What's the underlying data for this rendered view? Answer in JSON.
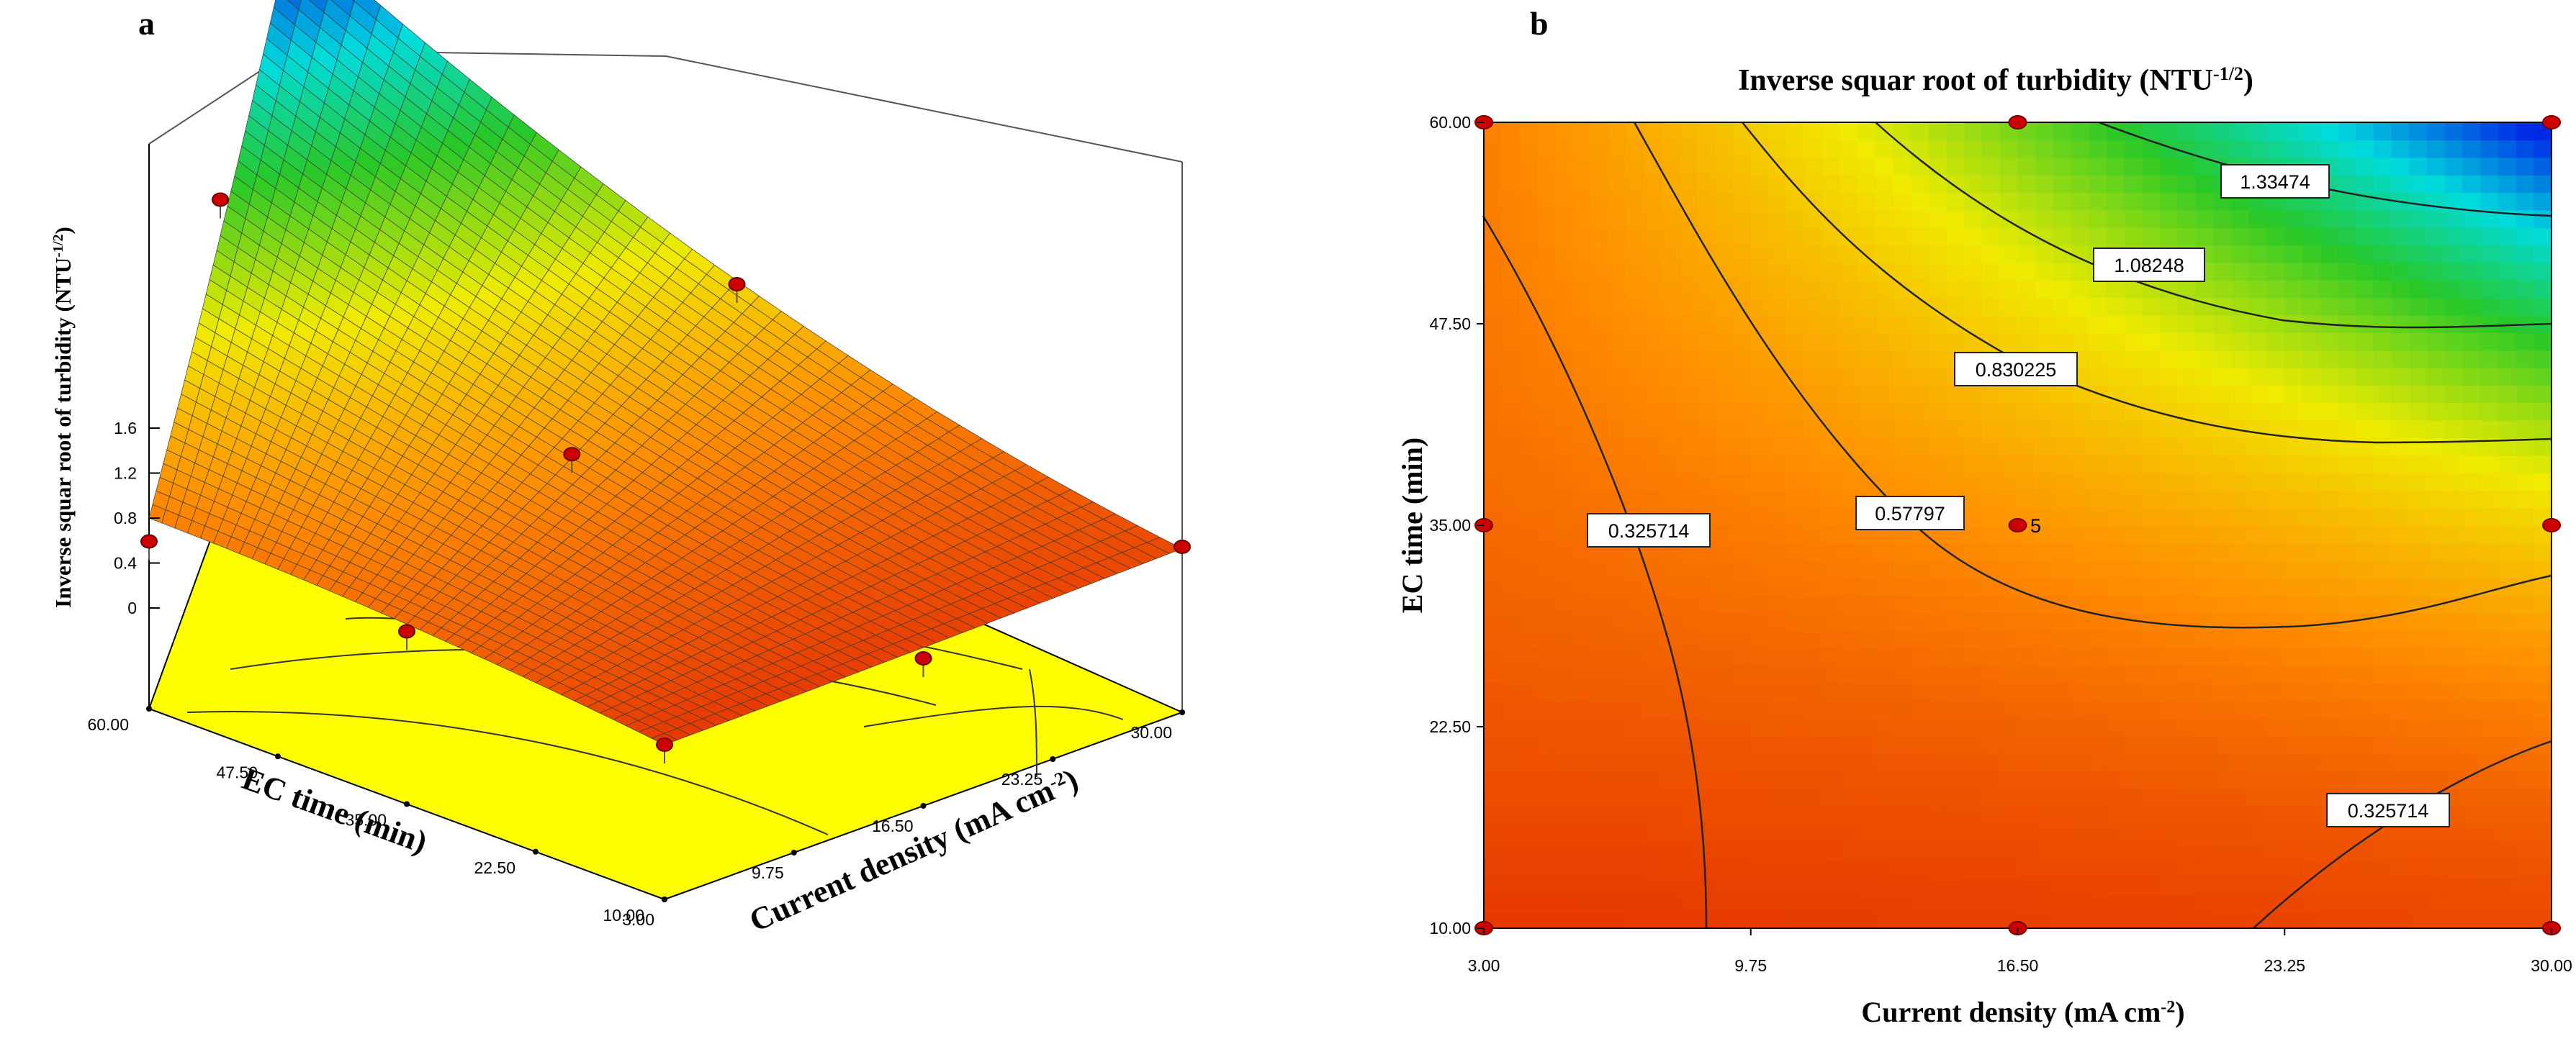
{
  "chart_data": [
    {
      "panel": "a",
      "type": "surface3d",
      "zlabel": "Inverse squar root of turbidity (NTU",
      "zlabel_sup": "-1/2",
      "zlabel_end": ")",
      "xlabel": "Current density (mA cm",
      "xlabel_sup": "-2",
      "xlabel_end": ")",
      "ylabel": "EC time (min)",
      "x_ticks": [
        "3.00",
        "9.75",
        "16.50",
        "23.25",
        "30.00"
      ],
      "y_ticks": [
        "10.00",
        "22.50",
        "35.00",
        "47.50",
        "60.00"
      ],
      "z_ticks": [
        "0",
        "0.4",
        "0.8",
        "1.2",
        "1.6"
      ],
      "xlim": [
        3,
        30
      ],
      "ylim": [
        10,
        60
      ],
      "zlim": [
        0,
        1.6
      ],
      "surface": {
        "x": [
          3,
          16.5,
          30
        ],
        "y": [
          10,
          35,
          60
        ],
        "z": [
          [
            0.3,
            0.32,
            0.35
          ],
          [
            0.44,
            0.56,
            0.74
          ],
          [
            0.5,
            0.98,
            1.6
          ]
        ],
        "z_note": "z[i][j]: i = EC time index, j = current density index"
      },
      "design_points": [
        {
          "x": 3,
          "y": 10,
          "z": 0.3
        },
        {
          "x": 30,
          "y": 10,
          "z": 0.36
        },
        {
          "x": 3,
          "y": 60,
          "z": 0.37
        },
        {
          "x": 30,
          "y": 60,
          "z": 1.58
        },
        {
          "x": 16.5,
          "y": 60,
          "z": 1.18
        },
        {
          "x": 16.5,
          "y": 35,
          "z": 0.58
        },
        {
          "x": 3,
          "y": 35,
          "z": 0.4
        },
        {
          "x": 16.5,
          "y": 10,
          "z": 0.26
        },
        {
          "x": 30,
          "y": 35,
          "z": 0.72
        }
      ]
    },
    {
      "panel": "b",
      "type": "contour",
      "title": "Inverse squar root of turbidity (NTU",
      "title_sup": "-1/2",
      "title_end": ")",
      "xlabel": "Current density (mA cm",
      "xlabel_sup": "-2",
      "xlabel_end": ")",
      "ylabel": "EC time (min)",
      "x_ticks": [
        "3.00",
        "9.75",
        "16.50",
        "23.25",
        "30.00"
      ],
      "y_ticks": [
        "10.00",
        "22.50",
        "35.00",
        "47.50",
        "60.00"
      ],
      "xlim": [
        3,
        30
      ],
      "ylim": [
        10,
        60
      ],
      "contour_levels": [
        "1.33474",
        "1.08248",
        "0.830225",
        "0.57797",
        "0.325714",
        "0.325714"
      ],
      "center_point_label": "5",
      "design_points": [
        {
          "x": 3,
          "y": 60
        },
        {
          "x": 16.5,
          "y": 60
        },
        {
          "x": 30,
          "y": 60
        },
        {
          "x": 3,
          "y": 35
        },
        {
          "x": 16.5,
          "y": 35
        },
        {
          "x": 30,
          "y": 35
        },
        {
          "x": 3,
          "y": 10
        },
        {
          "x": 16.5,
          "y": 10
        },
        {
          "x": 30,
          "y": 10
        }
      ]
    }
  ],
  "panel_labels": [
    "a",
    "b"
  ],
  "colors": {
    "surface_floor": "#ffff00",
    "point": "#cc0000"
  }
}
